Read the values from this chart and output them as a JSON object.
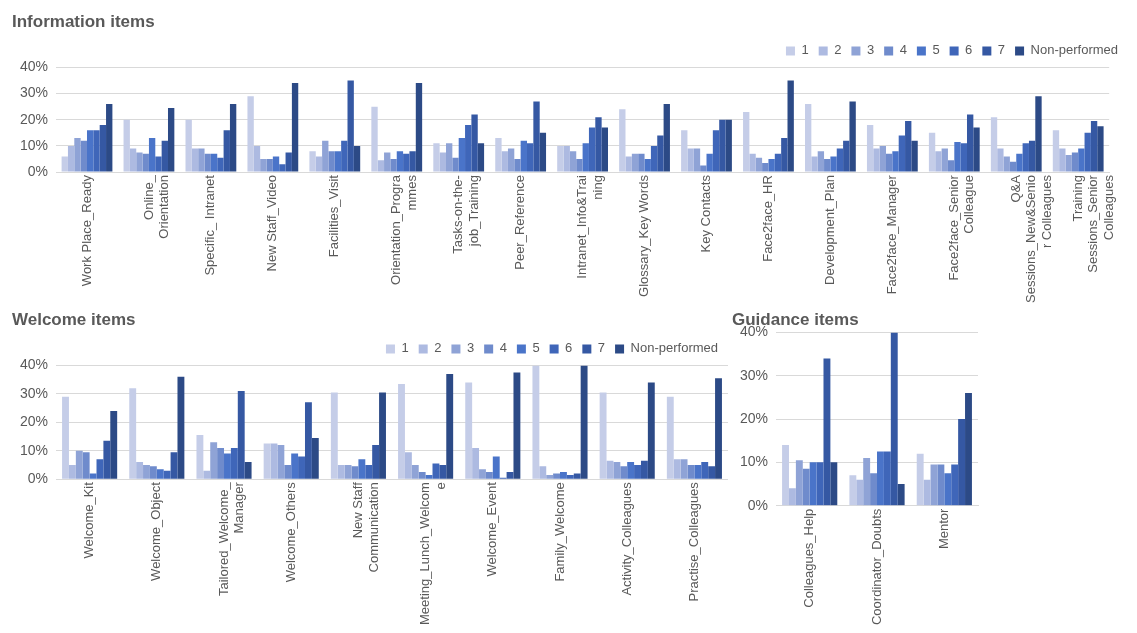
{
  "chart_data": [
    {
      "type": "bar",
      "title": "Information items",
      "legend": "top right",
      "grid": "y",
      "categories": [
        "Work Place_Ready",
        "Online_ Orientation",
        "Specific_ Intranet",
        "New Staff_Video",
        "Facilities_Visit",
        "Orientation_Programmes",
        "Tasks-on-the- job_Training",
        "Peer_Reference",
        "Intranet_Info&Training",
        "Glossary_Key Words",
        "Key Contacts",
        "Face2face_HR",
        "Development_Plan",
        "Face2face_Manager",
        "Face2face_Senior Colleague",
        "Q&A Sessions_New&Senior Colleagues",
        "Training Sessions_Senior Colleagues"
      ],
      "ylim": [
        0,
        40
      ],
      "yticks": [
        {
          "value": 0,
          "label": "0%"
        },
        {
          "value": 10,
          "label": "10%"
        },
        {
          "value": 20,
          "label": "20%"
        },
        {
          "value": 30,
          "label": "30%"
        },
        {
          "value": 40,
          "label": "40%"
        }
      ],
      "series": [
        {
          "name": "1",
          "color": "#c5cde8",
          "values": [
            6,
            20,
            20,
            29,
            8,
            25,
            11,
            13,
            10,
            24,
            16,
            23,
            26,
            18,
            15,
            21,
            16
          ]
        },
        {
          "name": "2",
          "color": "#adbae1",
          "values": [
            10,
            9,
            9,
            10,
            6,
            4.5,
            7.5,
            8,
            10,
            6,
            9,
            7,
            6,
            9,
            8,
            9,
            9
          ]
        },
        {
          "name": "3",
          "color": "#8fa3d6",
          "values": [
            13,
            7.5,
            9,
            5,
            12,
            7.5,
            11,
            9,
            8,
            7,
            9,
            5.5,
            8,
            10,
            9,
            6,
            6.5
          ]
        },
        {
          "name": "4",
          "color": "#6f8bcc",
          "values": [
            12,
            7,
            7,
            5,
            8,
            5,
            5.5,
            5,
            5,
            7,
            2.5,
            3.5,
            5,
            7,
            4.5,
            4,
            7.5
          ]
        },
        {
          "name": "5",
          "color": "#4a74c9",
          "values": [
            16,
            13,
            7,
            6,
            8,
            8,
            13,
            12,
            11,
            5,
            7,
            5,
            6,
            8,
            11.5,
            7,
            9
          ]
        },
        {
          "name": "6",
          "color": "#3f66b9",
          "values": [
            16,
            6,
            5.5,
            3,
            12,
            7,
            18,
            11,
            17,
            10,
            16,
            7,
            9,
            14,
            11,
            11,
            15
          ]
        },
        {
          "name": "7",
          "color": "#3558a3",
          "values": [
            18,
            12,
            16,
            7.5,
            35,
            8,
            22,
            27,
            21,
            14,
            20,
            13,
            12,
            19.5,
            22,
            12,
            19.5
          ]
        },
        {
          "name": "Non-performed",
          "color": "#2c4a86",
          "values": [
            26,
            24.5,
            26,
            34,
            10,
            34,
            11,
            15,
            17,
            26,
            20,
            35,
            27,
            12,
            17,
            29,
            17.5
          ]
        }
      ]
    },
    {
      "type": "bar",
      "title": "Welcome items",
      "legend": "top right",
      "grid": "y",
      "categories": [
        "Welcome_Kit",
        "Welcome_Object",
        "Tailored_Welcome_ Manager",
        "Welcome_Others",
        "New Staff Communication",
        "Meeting_Lunch_Welcome",
        "Welcome_Event",
        "Family_Welcome",
        "Activity_Colleagues",
        "Practise_Colleagues"
      ],
      "ylim": [
        0,
        40
      ],
      "yticks": [
        {
          "value": 0,
          "label": "0%"
        },
        {
          "value": 10,
          "label": "10%"
        },
        {
          "value": 20,
          "label": "20%"
        },
        {
          "value": 30,
          "label": "30%"
        },
        {
          "value": 40,
          "label": "40%"
        }
      ],
      "series": [
        {
          "name": "1",
          "color": "#c5cde8",
          "values": [
            29,
            32,
            15.5,
            12.5,
            30.5,
            33.5,
            34,
            40,
            30.5,
            29
          ]
        },
        {
          "name": "2",
          "color": "#adbae1",
          "values": [
            5,
            6,
            3,
            12.5,
            5,
            9.5,
            11,
            4.5,
            6.5,
            7
          ]
        },
        {
          "name": "3",
          "color": "#8fa3d6",
          "values": [
            10,
            5,
            13,
            12,
            5,
            5,
            3.5,
            1.5,
            6,
            7
          ]
        },
        {
          "name": "4",
          "color": "#6f8bcc",
          "values": [
            9.5,
            4.5,
            11,
            5,
            4.5,
            2.5,
            2.5,
            2,
            4.5,
            5
          ]
        },
        {
          "name": "5",
          "color": "#4a74c9",
          "values": [
            2,
            3.5,
            9,
            9,
            7,
            1.5,
            8,
            2.5,
            6,
            5
          ]
        },
        {
          "name": "6",
          "color": "#3f66b9",
          "values": [
            7,
            3,
            11,
            8,
            5,
            5.5,
            0.5,
            1.5,
            5,
            6
          ]
        },
        {
          "name": "7",
          "color": "#3558a3",
          "values": [
            13.5,
            9.5,
            31,
            27,
            12,
            5,
            2.5,
            2,
            6.5,
            4.5
          ]
        },
        {
          "name": "Non-performed",
          "color": "#2c4a86",
          "values": [
            24,
            36,
            6,
            14.5,
            30.5,
            37,
            37.5,
            40,
            34,
            35.5
          ]
        }
      ]
    },
    {
      "type": "bar",
      "title": "Guidance items",
      "grid": "y",
      "categories": [
        "Colleagues_Help",
        "Coordinator_Doubts",
        "Mentor"
      ],
      "ylim": [
        0,
        40
      ],
      "yticks": [
        {
          "value": 0,
          "label": "0%"
        },
        {
          "value": 10,
          "label": "10%"
        },
        {
          "value": 20,
          "label": "20%"
        },
        {
          "value": 30,
          "label": "30%"
        },
        {
          "value": 40,
          "label": "40%"
        }
      ],
      "series": [
        {
          "color": "#c5cde8",
          "values": [
            14,
            7,
            12
          ]
        },
        {
          "color": "#adbae1",
          "values": [
            4,
            6,
            6
          ]
        },
        {
          "color": "#8fa3d6",
          "values": [
            10.5,
            11,
            9.5
          ]
        },
        {
          "color": "#6f8bcc",
          "values": [
            8.5,
            7.5,
            9.5
          ]
        },
        {
          "color": "#4a74c9",
          "values": [
            10,
            12.5,
            7.5
          ]
        },
        {
          "color": "#3f66b9",
          "values": [
            10,
            12.5,
            9.5
          ]
        },
        {
          "color": "#3558a3",
          "values": [
            34,
            40,
            20
          ]
        },
        {
          "color": "#2c4a86",
          "values": [
            10,
            5,
            26
          ]
        }
      ]
    }
  ]
}
